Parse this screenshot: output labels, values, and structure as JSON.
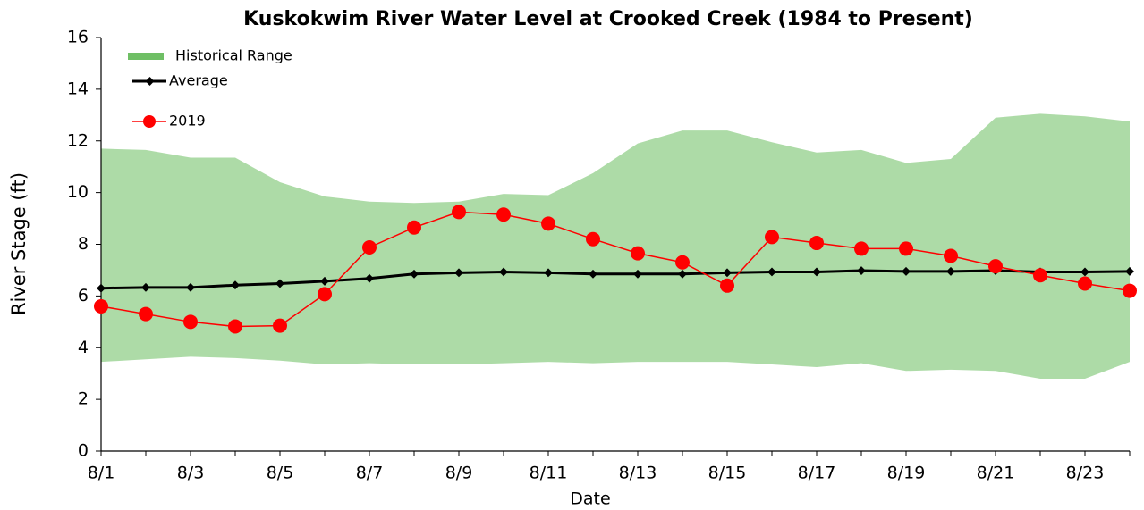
{
  "chart_data": {
    "type": "line",
    "title": "Kuskokwim River Water Level at Crooked Creek (1984 to Present)",
    "x_label": "Date",
    "y_label": "River Stage (ft)",
    "categories": [
      "8/1",
      null,
      "8/3",
      null,
      "8/5",
      null,
      "8/7",
      null,
      "8/9",
      null,
      "8/11",
      null,
      "8/13",
      null,
      "8/15",
      null,
      "8/17",
      null,
      "8/19",
      null,
      "8/21",
      null,
      "8/23",
      null
    ],
    "ylim": [
      0,
      16
    ],
    "yticks": [
      0,
      2,
      4,
      6,
      8,
      10,
      12,
      14,
      16
    ],
    "legend": "top-left",
    "series": [
      {
        "name": "Historical Range",
        "color": "#6fbf65",
        "kind": "range",
        "high": [
          11.7,
          11.65,
          11.35,
          11.35,
          10.4,
          9.85,
          9.65,
          9.6,
          9.65,
          9.95,
          9.9,
          10.75,
          11.9,
          12.4,
          12.4,
          11.95,
          11.55,
          11.65,
          11.15,
          11.3,
          12.9,
          13.05,
          12.95,
          12.75
        ],
        "low": [
          3.45,
          3.55,
          3.65,
          3.6,
          3.5,
          3.35,
          3.4,
          3.35,
          3.35,
          3.4,
          3.45,
          3.4,
          3.45,
          3.45,
          3.45,
          3.35,
          3.25,
          3.4,
          3.1,
          3.15,
          3.1,
          2.8,
          2.8,
          3.45
        ]
      },
      {
        "name": "Average",
        "color": "#000000",
        "kind": "diamond",
        "values": [
          6.3,
          6.33,
          6.33,
          6.42,
          6.48,
          6.57,
          6.68,
          6.85,
          6.9,
          6.93,
          6.9,
          6.85,
          6.85,
          6.85,
          6.9,
          6.93,
          6.93,
          6.98,
          6.95,
          6.95,
          6.98,
          6.93,
          6.93,
          6.95
        ]
      },
      {
        "name": "2019",
        "color": "#ff0000",
        "kind": "circle",
        "values": [
          5.6,
          5.3,
          5.0,
          4.82,
          4.85,
          6.07,
          7.88,
          8.65,
          9.25,
          9.15,
          8.8,
          8.2,
          7.65,
          7.3,
          6.4,
          8.28,
          8.05,
          7.83,
          7.83,
          7.55,
          7.15,
          6.8,
          6.48,
          6.2
        ]
      }
    ]
  }
}
